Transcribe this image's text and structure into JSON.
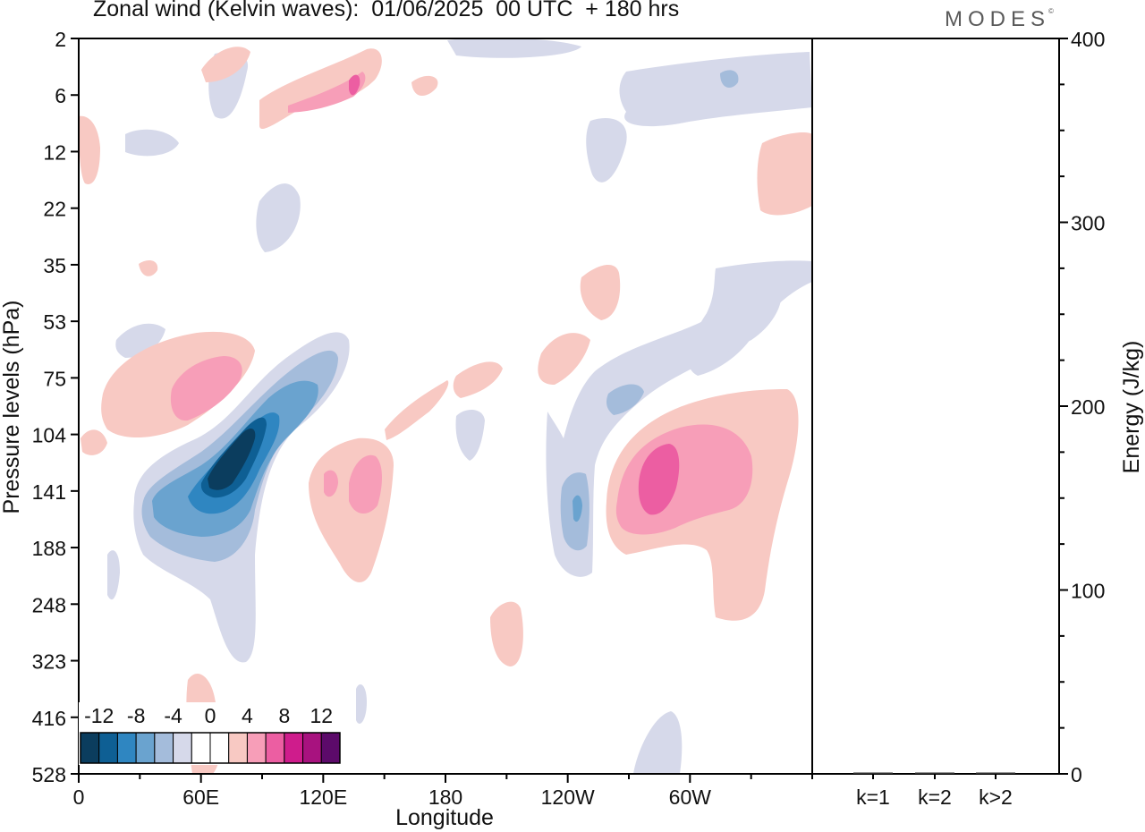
{
  "title": "Zonal wind (Kelvin waves):  01/06/2025  00 UTC  + 180 hrs",
  "brand": "MODES",
  "brand_mark": "©",
  "chart_data": [
    {
      "type": "heatmap",
      "xlabel": "Longitude",
      "ylabel": "Pressure levels (hPa)",
      "x_ticks": [
        "0",
        "60E",
        "120E",
        "180",
        "120W",
        "60W"
      ],
      "y_ticks": [
        "2",
        "6",
        "12",
        "22",
        "35",
        "53",
        "75",
        "104",
        "141",
        "188",
        "248",
        "323",
        "416",
        "528"
      ],
      "y_scale": "log-pressure (top = 2 hPa, bottom = 528 hPa)",
      "colorbar": {
        "labels": [
          "-12",
          "-8",
          "-4",
          "0",
          "4",
          "8",
          "12"
        ],
        "colors": [
          "#0b3d5e",
          "#0e5f94",
          "#2f86c1",
          "#6aa3cf",
          "#a4bcdb",
          "#d6d9ea",
          "#ffffff",
          "#ffffff",
          "#f8c9c3",
          "#f79eb8",
          "#ec5ea2",
          "#cf1c8c",
          "#a8127f",
          "#5c0a6a"
        ],
        "placement": "bottom-left inside plot"
      },
      "features": [
        {
          "name": "easterly anomaly",
          "sign": "negative",
          "peak_value": -12,
          "lon": 75,
          "p_hPa": 125
        },
        {
          "name": "westerly anomaly",
          "sign": "positive",
          "peak_value": 8,
          "lon": 70,
          "p_hPa": 90
        },
        {
          "name": "westerly anomaly",
          "sign": "positive",
          "peak_value": 6,
          "lon": 145,
          "p_hPa": 140
        },
        {
          "name": "easterly anomaly",
          "sign": "negative",
          "peak_value": -6,
          "lon": 246,
          "p_hPa": 150
        },
        {
          "name": "westerly anomaly",
          "sign": "positive",
          "peak_value": 10,
          "lon": 290,
          "p_hPa": 140
        }
      ]
    },
    {
      "type": "bar",
      "categories": [
        "k=1",
        "k=2",
        "k>2"
      ],
      "values": [
        0.3,
        0.3,
        0.3
      ],
      "ylabel": "Energy (J/kg)",
      "y_ticks": [
        "0",
        "100",
        "200",
        "300",
        "400"
      ],
      "ylim": [
        0,
        400
      ]
    }
  ]
}
